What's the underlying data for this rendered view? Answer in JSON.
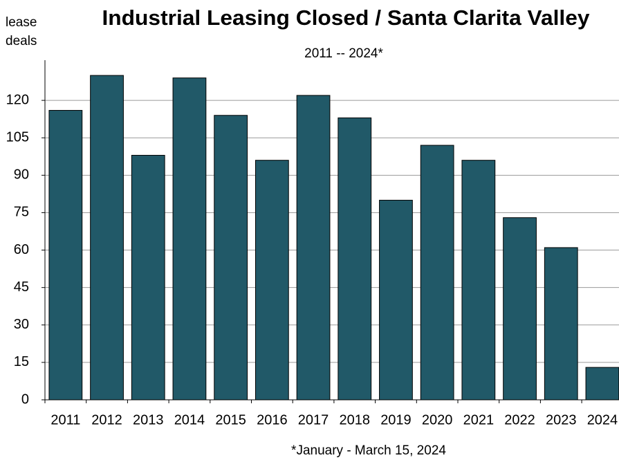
{
  "chart_data": {
    "type": "bar",
    "title": "Industrial Leasing Closed / Santa Clarita Valley",
    "subtitle": "2011 -- 2024*",
    "y_label": [
      "lease",
      "deals"
    ],
    "footnote": "*January - March 15, 2024",
    "categories": [
      "2011",
      "2012",
      "2013",
      "2014",
      "2015",
      "2016",
      "2017",
      "2018",
      "2019",
      "2020",
      "2021",
      "2022",
      "2023",
      "2024"
    ],
    "values": [
      116,
      130,
      98,
      129,
      114,
      96,
      122,
      113,
      80,
      102,
      96,
      73,
      61,
      13
    ],
    "color": "#215968",
    "ylim": [
      0,
      135
    ],
    "yticks": [
      0,
      15,
      30,
      45,
      60,
      75,
      90,
      105,
      120
    ],
    "grid": true
  }
}
